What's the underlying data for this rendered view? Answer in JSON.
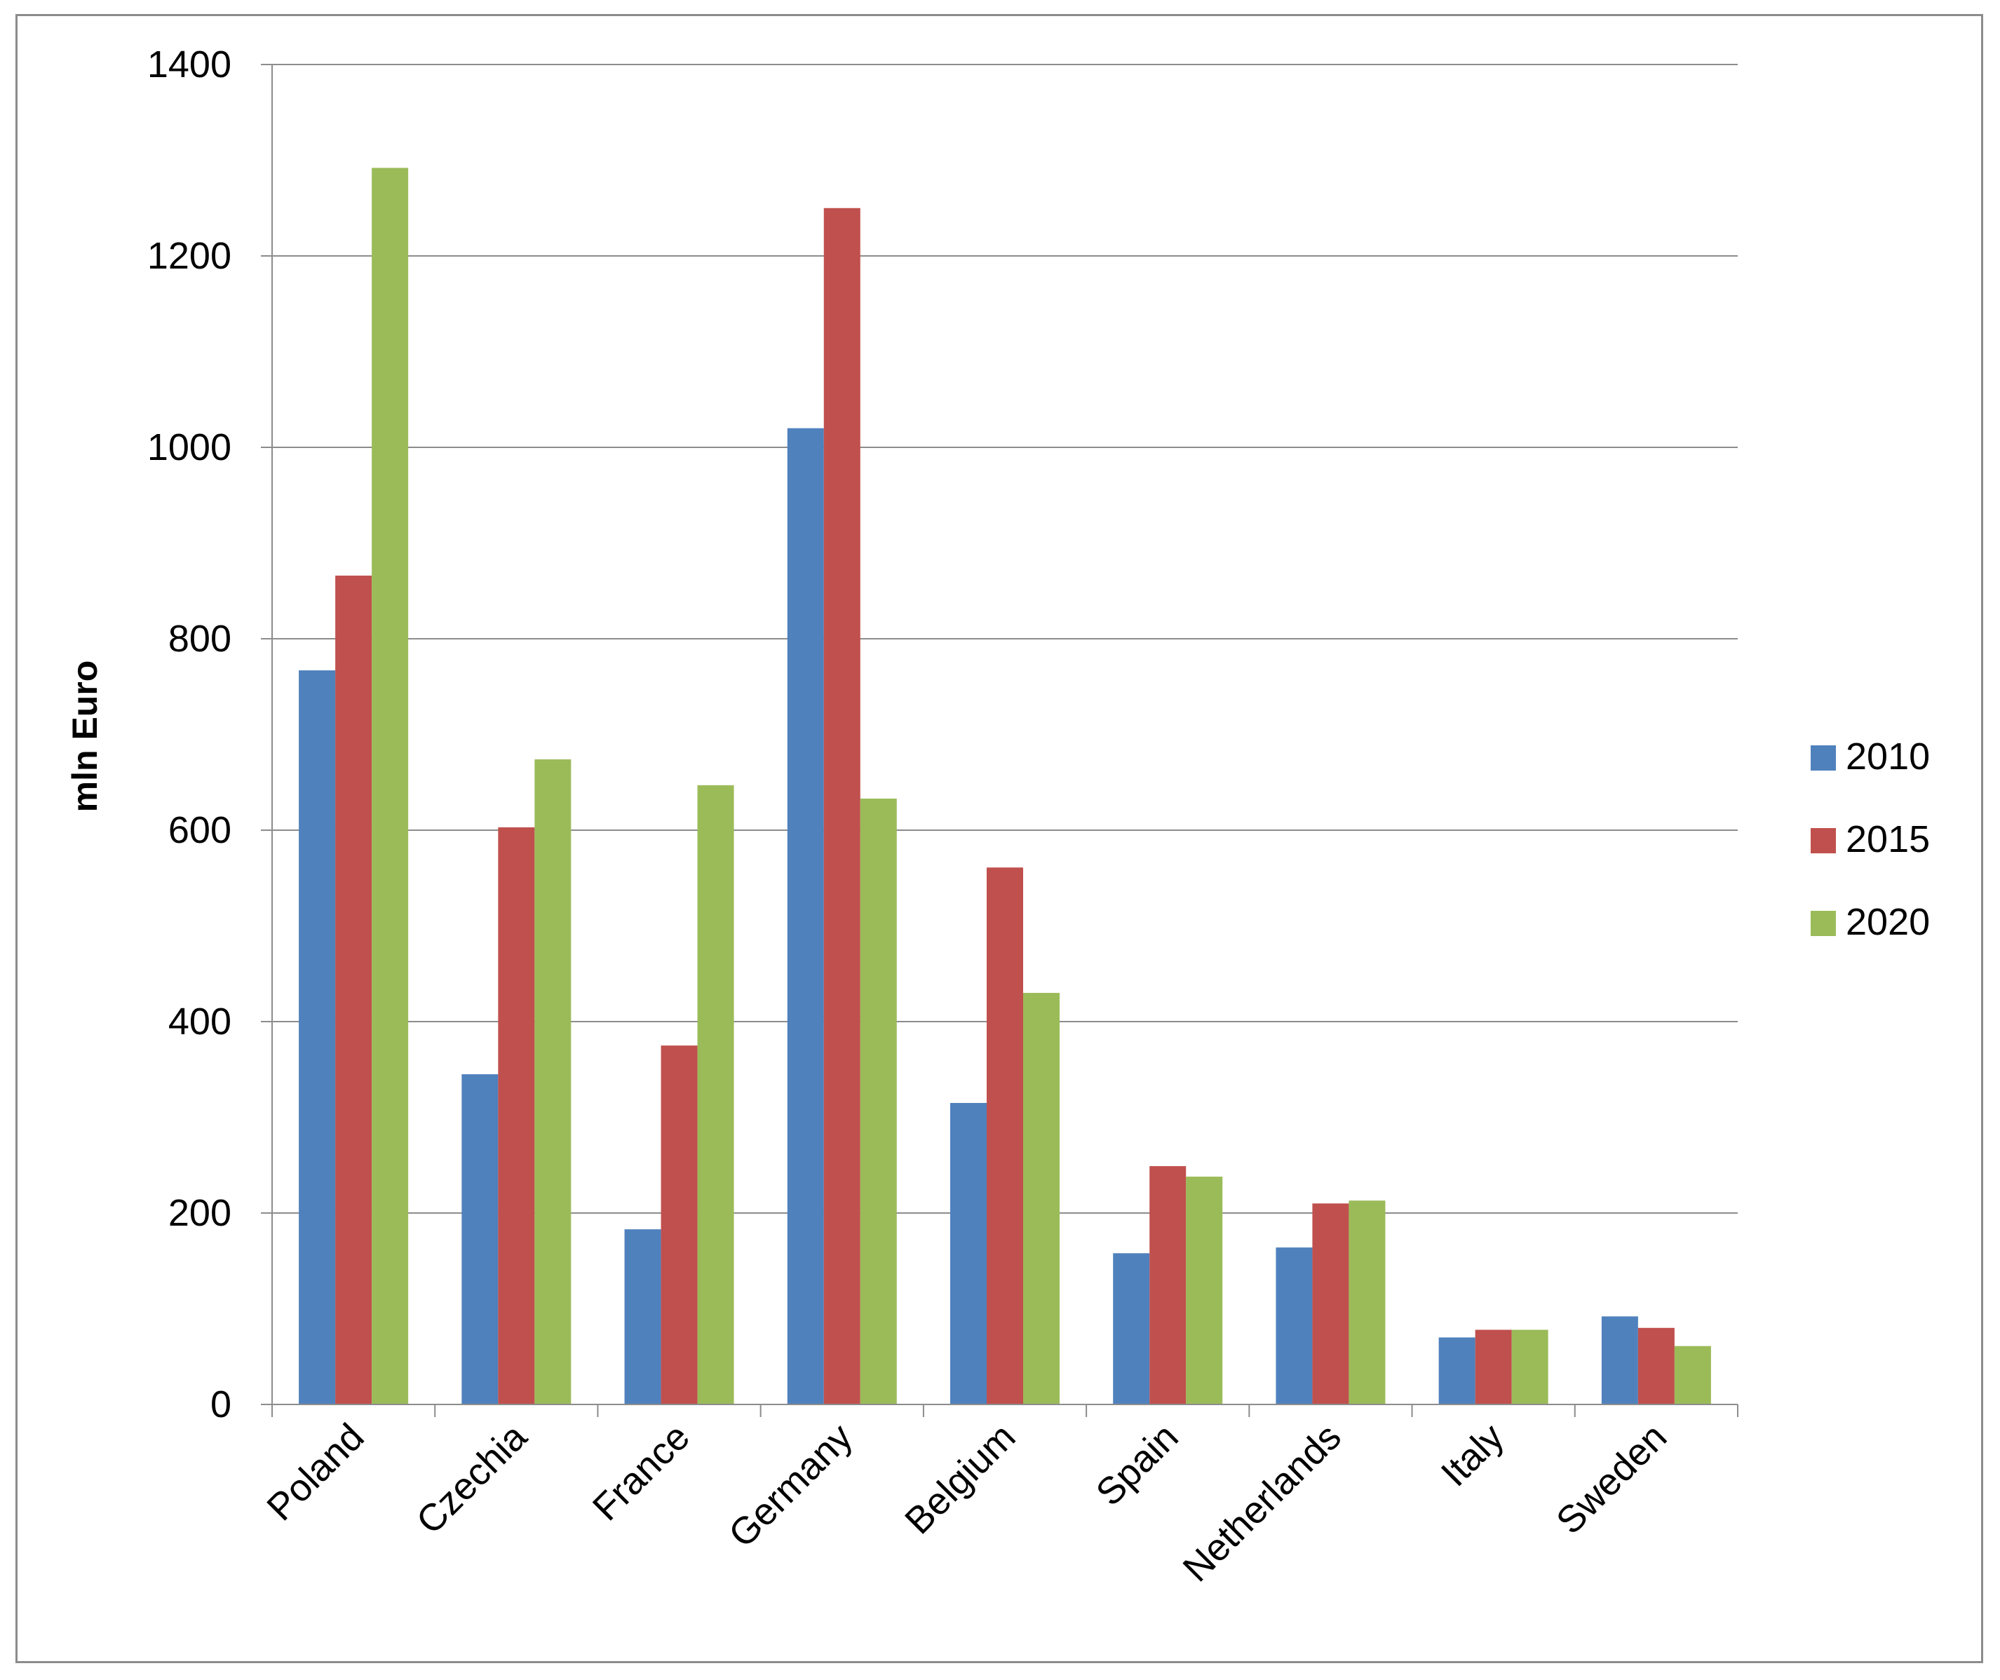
{
  "chart_data": {
    "type": "bar",
    "title": "",
    "xlabel": "",
    "ylabel": "mln Euro",
    "ylim": [
      0,
      1400
    ],
    "yticks": [
      0,
      200,
      400,
      600,
      800,
      1000,
      1200,
      1400
    ],
    "grid": true,
    "legend_position": "right",
    "categories": [
      "Poland",
      "Czechia",
      "France",
      "Germany",
      "Belgium",
      "Spain",
      "Netherlands",
      "Italy",
      "Sweden"
    ],
    "series": [
      {
        "name": "2010",
        "color": "#4f81bd",
        "values": [
          767,
          345,
          183,
          1020,
          315,
          158,
          164,
          70,
          92
        ]
      },
      {
        "name": "2015",
        "color": "#c0504d",
        "values": [
          866,
          603,
          375,
          1250,
          561,
          249,
          210,
          78,
          80
        ]
      },
      {
        "name": "2020",
        "color": "#9bbb59",
        "values": [
          1292,
          674,
          647,
          633,
          430,
          238,
          213,
          78,
          61
        ]
      }
    ]
  }
}
